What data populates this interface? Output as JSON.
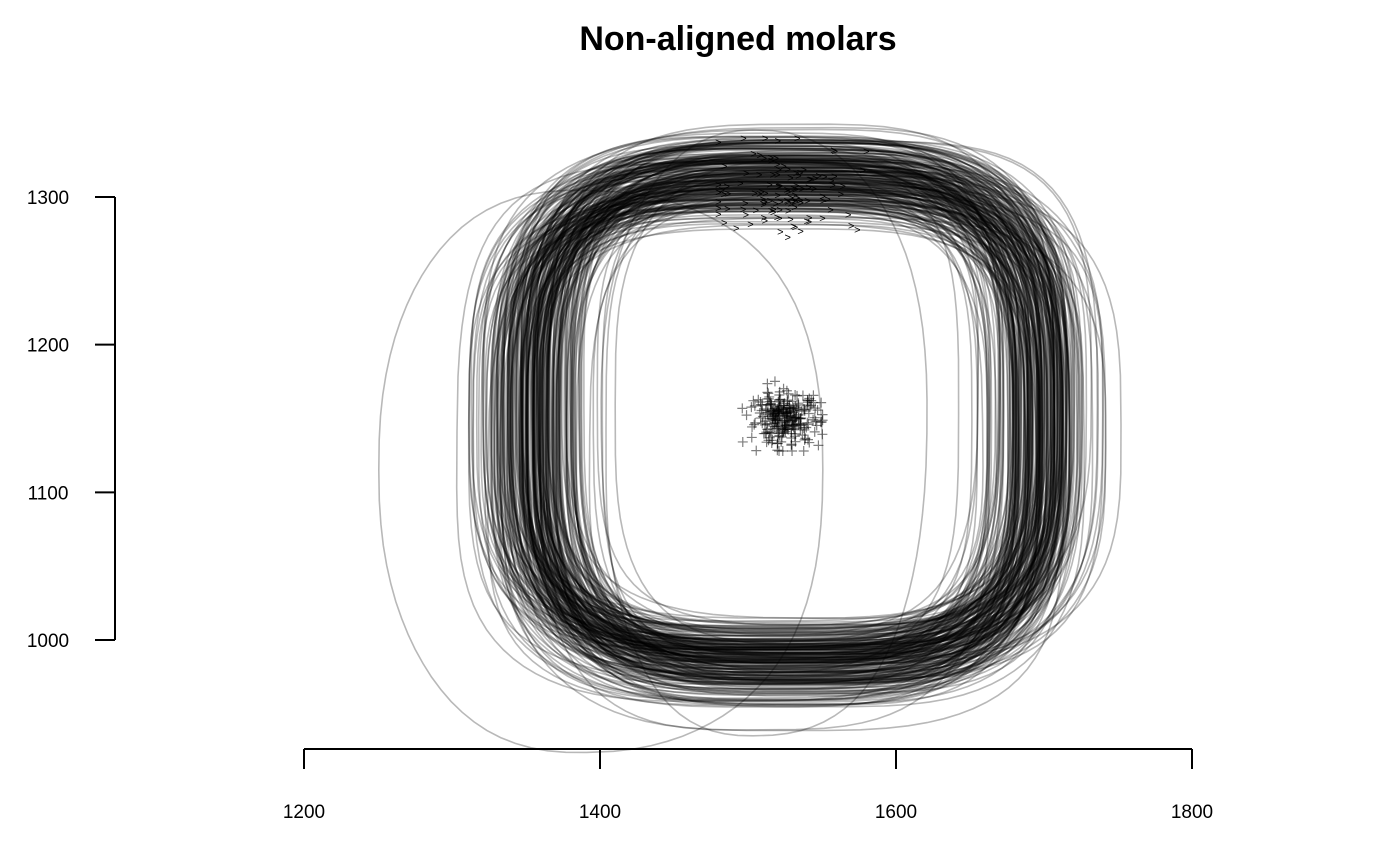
{
  "chart_data": {
    "type": "scatter",
    "title": "Non-aligned molars",
    "xlabel": "",
    "ylabel": "",
    "xlim": [
      1200,
      1800
    ],
    "ylim": [
      1000,
      1300
    ],
    "x_ticks": [
      1200,
      1400,
      1600,
      1800
    ],
    "y_ticks": [
      1000,
      1100,
      1200,
      1300
    ],
    "grid": false,
    "legend": "none",
    "series": [
      {
        "kind": "outlines",
        "count": 250,
        "typical_shape": "rounded square",
        "center_mean": [
          1525,
          1150
        ],
        "half_width_x": 170,
        "half_height_y": 165,
        "color": "#000000",
        "opacity": 0.28
      },
      {
        "kind": "outlines",
        "count": 2,
        "note": "outlying shapes",
        "examples": [
          {
            "center": [
              1400,
              1115
            ],
            "half_width_x": 150,
            "half_height_y": 190
          },
          {
            "center": [
              1510,
              1140
            ],
            "half_width_x": 110,
            "half_height_y": 205
          }
        ],
        "color": "#000000",
        "opacity": 0.3
      },
      {
        "kind": "points",
        "marker": "+",
        "name": "centroids",
        "center_mean": [
          1525,
          1150
        ],
        "spread": [
          12,
          9
        ],
        "count": 250,
        "range_x": [
          1495,
          1560
        ],
        "range_y": [
          1128,
          1180
        ]
      },
      {
        "kind": "points",
        "marker": ">",
        "name": "first landmarks",
        "center_mean": [
          1525,
          1305
        ],
        "spread": [
          25,
          15
        ],
        "count": 120,
        "range_x": [
          1480,
          1580
        ],
        "range_y": [
          1273,
          1340
        ]
      }
    ]
  }
}
